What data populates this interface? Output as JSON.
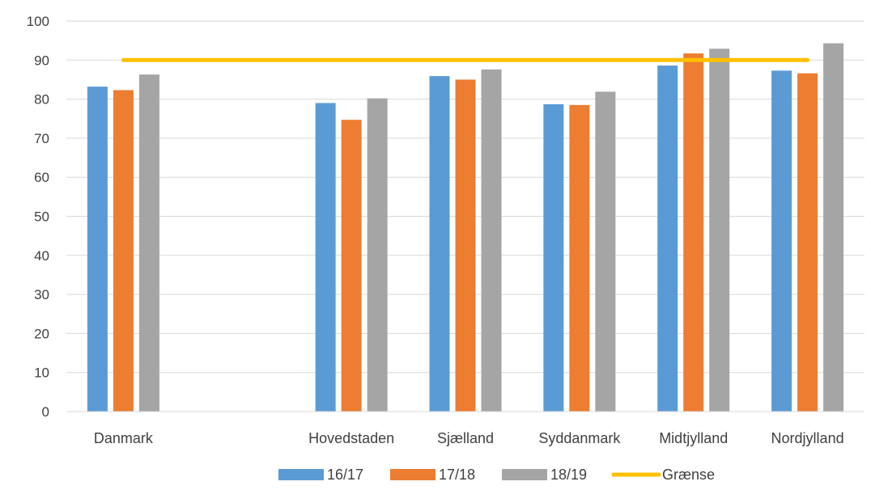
{
  "chart_data": {
    "type": "bar",
    "categories": [
      "Danmark",
      "",
      "Hovedstaden",
      "Sjælland",
      "Syddanmark",
      "Midtjylland",
      "Nordjylland"
    ],
    "series": [
      {
        "name": "16/17",
        "color": "#5b9bd5",
        "values": [
          83.2,
          null,
          79.0,
          85.9,
          78.7,
          88.6,
          87.3
        ]
      },
      {
        "name": "17/18",
        "color": "#ed7d31",
        "values": [
          82.3,
          null,
          74.7,
          85.0,
          78.5,
          91.7,
          86.6
        ]
      },
      {
        "name": "18/19",
        "color": "#a5a5a5",
        "values": [
          86.3,
          null,
          80.2,
          87.6,
          81.9,
          92.9,
          94.3
        ]
      }
    ],
    "reference_line": {
      "name": "Grænse",
      "color": "#ffc000",
      "value": 90,
      "from_category": 0,
      "to_category": 6
    },
    "ylim": [
      0,
      100
    ],
    "yticks": [
      0,
      10,
      20,
      30,
      40,
      50,
      60,
      70,
      80,
      90,
      100
    ],
    "grid": true,
    "legend_position": "bottom"
  }
}
